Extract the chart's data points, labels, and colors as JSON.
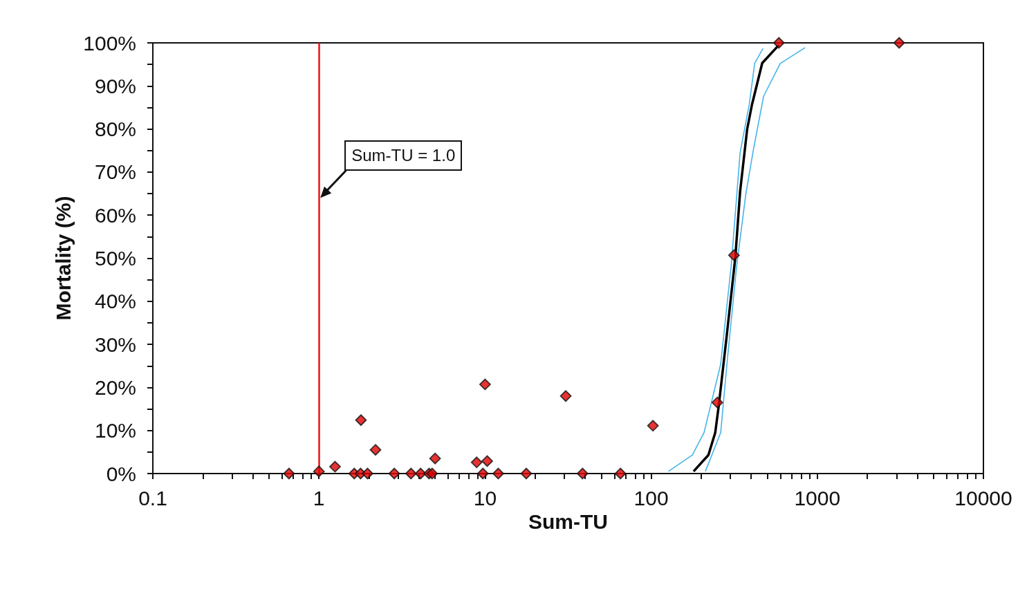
{
  "chart_data": {
    "type": "scatter",
    "xlabel": "Sum-TU",
    "ylabel": "Mortality (%)",
    "log": "x",
    "grid": false,
    "marker": "diamond",
    "xlim": [
      0.1,
      10000
    ],
    "ylim": [
      0,
      100
    ],
    "xticks": [
      0.1,
      {
        "value": 0.2,
        "label": null
      },
      {
        "value": 0.3,
        "label": null
      },
      {
        "value": 0.4,
        "label": null
      },
      {
        "value": 0.5,
        "label": null
      },
      {
        "value": 0.6,
        "label": null
      },
      {
        "value": 0.7,
        "label": null
      },
      {
        "value": 0.8,
        "label": null
      },
      {
        "value": 0.9,
        "label": null
      },
      1,
      {
        "value": 2,
        "label": null
      },
      {
        "value": 3,
        "label": null
      },
      {
        "value": 4,
        "label": null
      },
      {
        "value": 5,
        "label": null
      },
      {
        "value": 6,
        "label": null
      },
      {
        "value": 7,
        "label": null
      },
      {
        "value": 8,
        "label": null
      },
      {
        "value": 9,
        "label": null
      },
      10,
      {
        "value": 20,
        "label": null
      },
      {
        "value": 30,
        "label": null
      },
      {
        "value": 40,
        "label": null
      },
      {
        "value": 50,
        "label": null
      },
      {
        "value": 60,
        "label": null
      },
      {
        "value": 70,
        "label": null
      },
      {
        "value": 80,
        "label": null
      },
      {
        "value": 90,
        "label": null
      },
      100,
      {
        "value": 200,
        "label": null
      },
      {
        "value": 300,
        "label": null
      },
      {
        "value": 400,
        "label": null
      },
      {
        "value": 500,
        "label": null
      },
      {
        "value": 600,
        "label": null
      },
      {
        "value": 700,
        "label": null
      },
      {
        "value": 800,
        "label": null
      },
      {
        "value": 900,
        "label": null
      },
      1000,
      {
        "value": 2000,
        "label": null
      },
      {
        "value": 3000,
        "label": null
      },
      {
        "value": 4000,
        "label": null
      },
      {
        "value": 5000,
        "label": null
      },
      {
        "value": 6000,
        "label": null
      },
      {
        "value": 7000,
        "label": null
      },
      {
        "value": 8000,
        "label": null
      },
      {
        "value": 9000,
        "label": null
      },
      10000
    ],
    "yticks": [
      {
        "value": 0,
        "label": "0%"
      },
      {
        "value": 5,
        "label": null
      },
      {
        "value": 10,
        "label": "10%"
      },
      {
        "value": 15,
        "label": null
      },
      {
        "value": 20,
        "label": "20%"
      },
      {
        "value": 25,
        "label": null
      },
      {
        "value": 30,
        "label": "30%"
      },
      {
        "value": 35,
        "label": null
      },
      {
        "value": 40,
        "label": "40%"
      },
      {
        "value": 45,
        "label": null
      },
      {
        "value": 50,
        "label": "50%"
      },
      {
        "value": 55,
        "label": null
      },
      {
        "value": 60,
        "label": "60%"
      },
      {
        "value": 65,
        "label": null
      },
      {
        "value": 70,
        "label": "70%"
      },
      {
        "value": 75,
        "label": null
      },
      {
        "value": 80,
        "label": "80%"
      },
      {
        "value": 85,
        "label": null
      },
      {
        "value": 90,
        "label": "90%"
      },
      {
        "value": 95,
        "label": null
      },
      {
        "value": 100,
        "label": "100%"
      }
    ],
    "series": [
      {
        "type": "line",
        "marker": "none",
        "color": "#45b4e8",
        "x": [
          127,
          177,
          208,
          232,
          262,
          303,
          343,
          389,
          420,
          471
        ],
        "values": [
          0.5,
          4.3,
          9.5,
          17,
          25.4,
          48.2,
          74.5,
          85.6,
          95.3,
          98.7
        ]
      },
      {
        "type": "line",
        "marker": "none",
        "color": "#45b4e8",
        "x": [
          212,
          262,
          289,
          327,
          371,
          412,
          475,
          598,
          845
        ],
        "values": [
          0.5,
          9.5,
          27.4,
          48.2,
          64.8,
          75.1,
          87.6,
          95.2,
          98.9
        ]
      },
      {
        "type": "line",
        "marker": "none",
        "color": "#000000",
        "x": [
          180,
          221,
          243,
          255,
          283,
          321,
          343,
          378,
          404,
          466,
          587
        ],
        "values": [
          0.5,
          4.3,
          9.5,
          15.7,
          31,
          50.2,
          65.5,
          79.9,
          85.6,
          95.3,
          99.5
        ]
      },
      {
        "color": "#e00000",
        "x": [
          0.66,
          1.0,
          1.25,
          1.63,
          1.78,
          1.79,
          1.96,
          2.19,
          2.84,
          3.58,
          4.09,
          4.6,
          4.8,
          5.0,
          8.9,
          9.7,
          10.0,
          10.3,
          12.0,
          17.7,
          30.6,
          38.6,
          65.3,
          102.5,
          250,
          315,
          587,
          3110
        ],
        "values": [
          0,
          0.5,
          1.6,
          0,
          0,
          12.4,
          0,
          5.5,
          0,
          0,
          0,
          0,
          0,
          3.5,
          2.6,
          0,
          20.7,
          2.9,
          0,
          0,
          18,
          0,
          0,
          11.1,
          16.5,
          50.7,
          100,
          100
        ]
      }
    ],
    "ref_lines": [
      {
        "axis": "x",
        "value": 1,
        "label": "Sum-TU = 1.0",
        "color": "#ee1111"
      }
    ]
  }
}
